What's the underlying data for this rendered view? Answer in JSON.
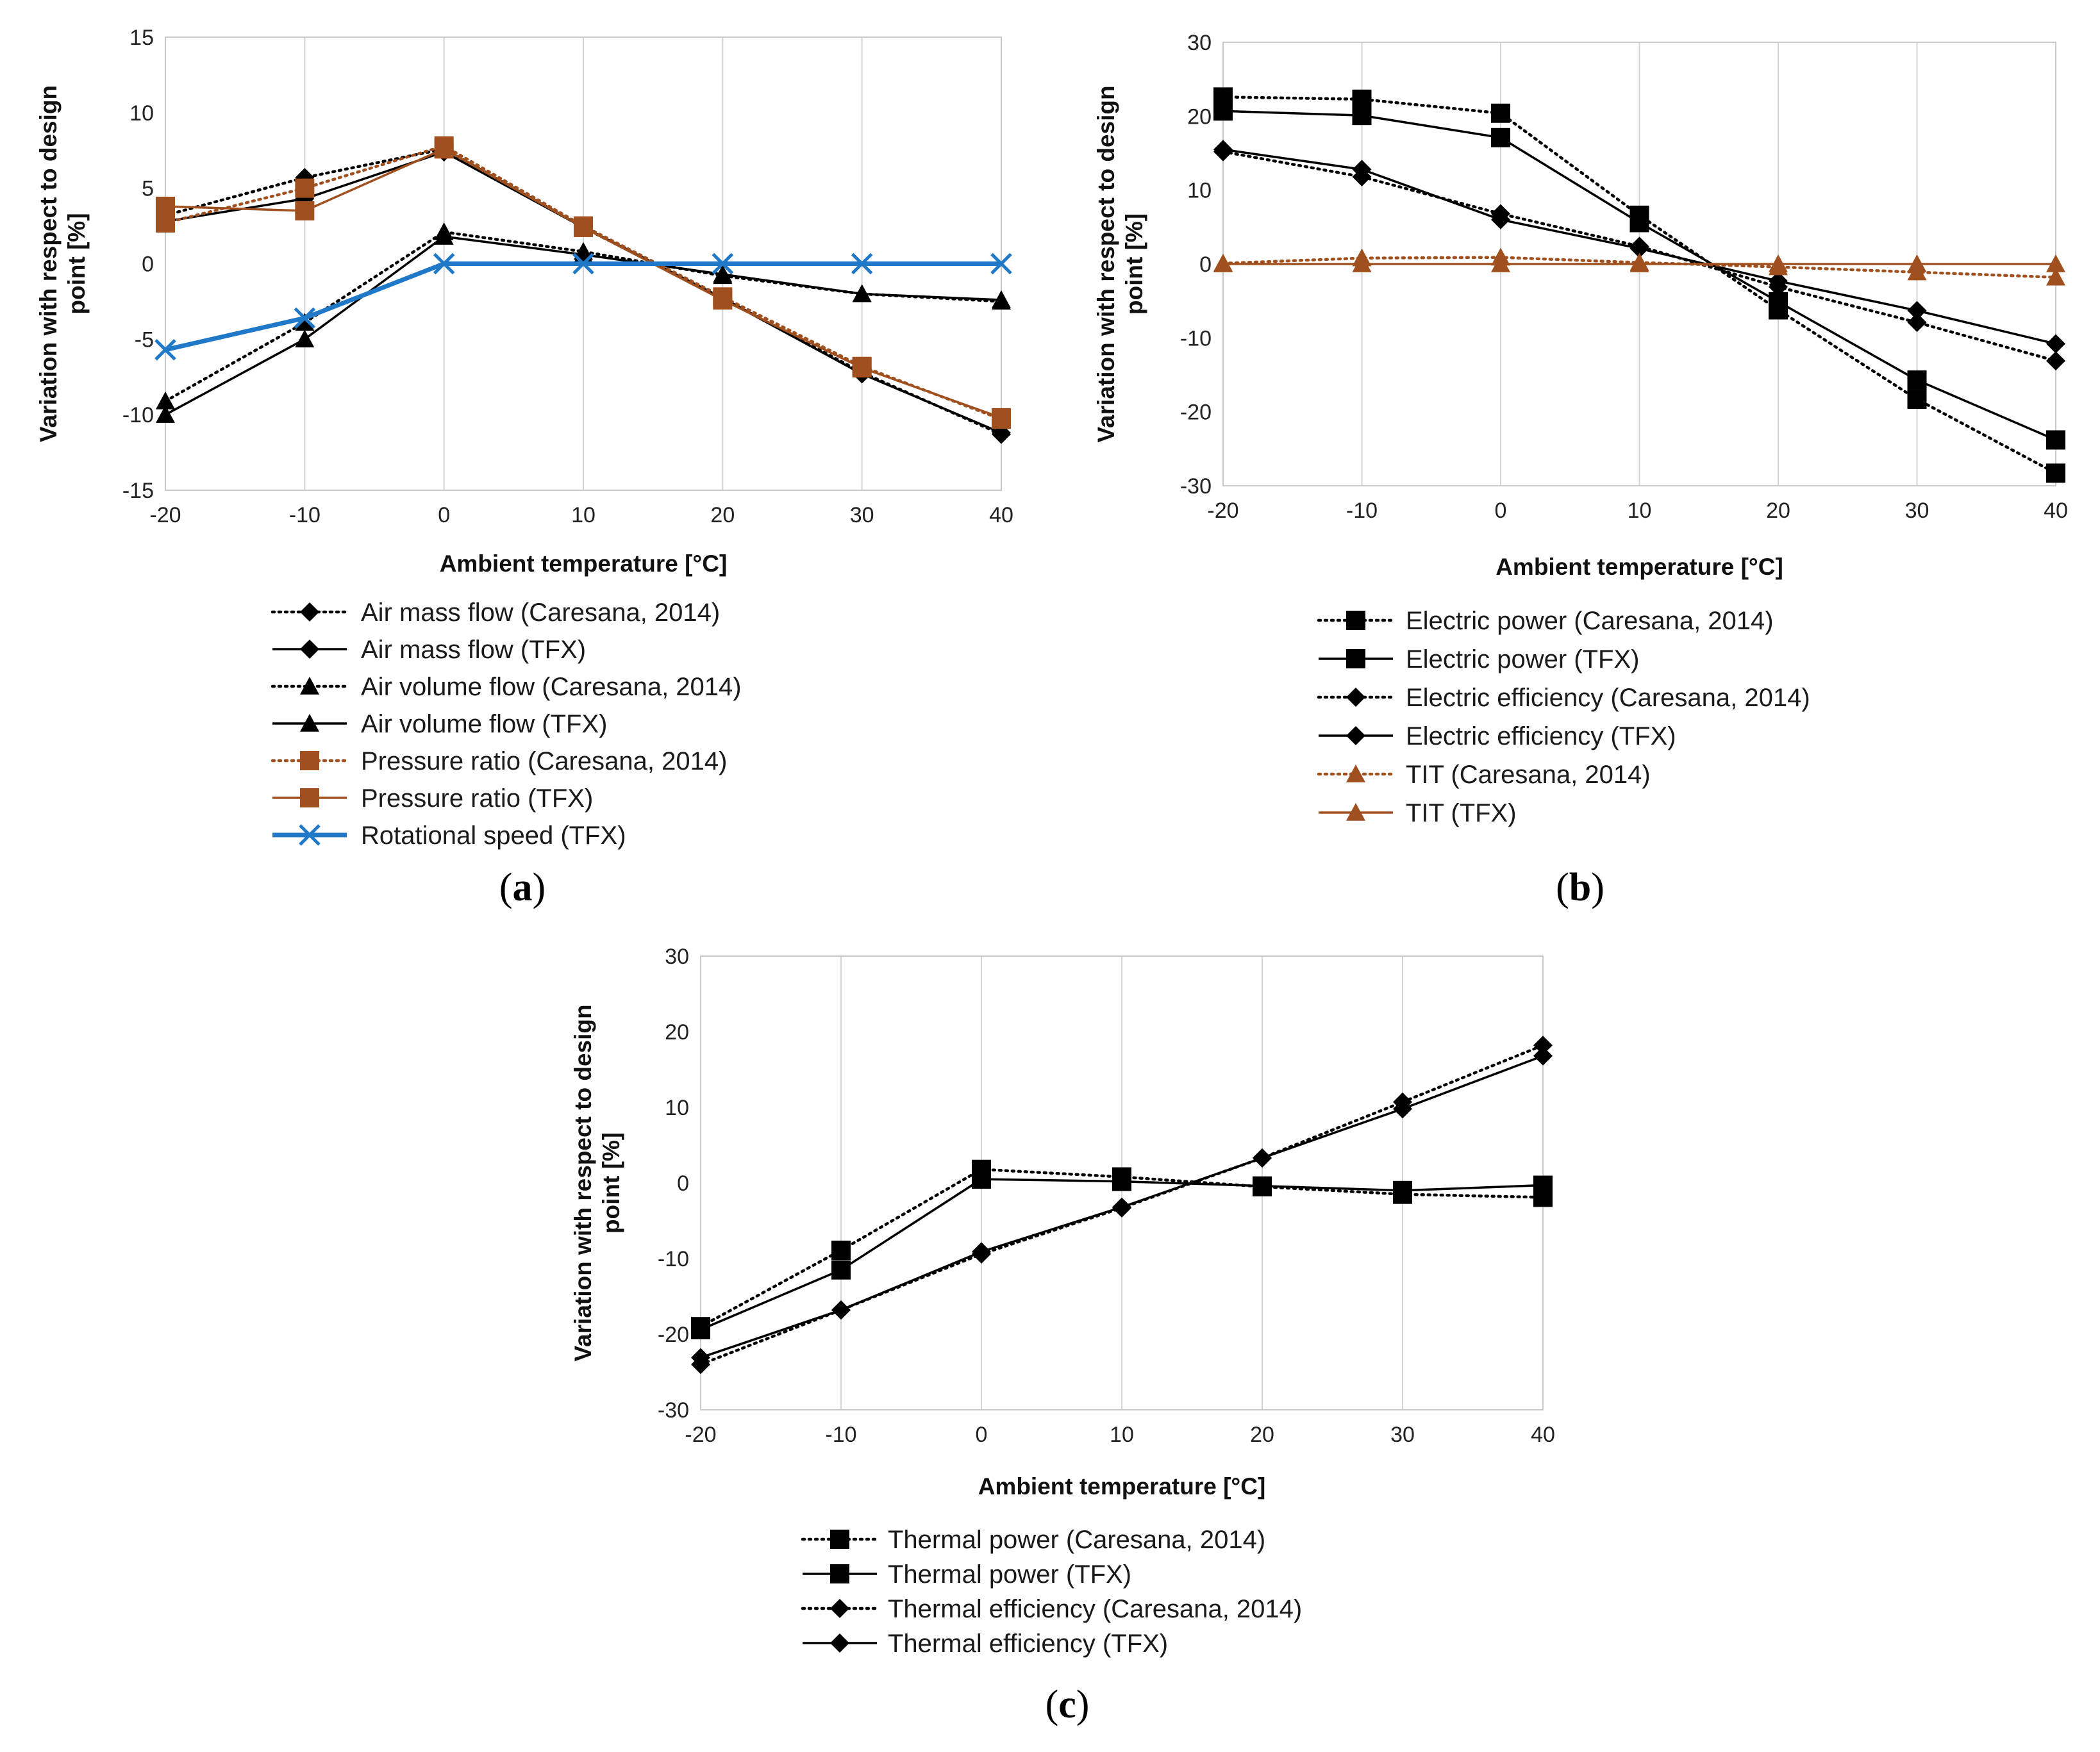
{
  "chart_data": [
    {
      "type": "line",
      "panel_label": "a",
      "xlabel": "Ambient temperature  [°C]",
      "ylabel_lines": [
        "Variation with respect to design",
        "point [%]"
      ],
      "x": [
        -20,
        -10,
        0,
        10,
        20,
        30,
        40
      ],
      "xlim": [
        -20,
        40
      ],
      "ylim": [
        -15,
        15
      ],
      "yticks": [
        -15,
        -10,
        -5,
        0,
        5,
        10,
        15
      ],
      "grid": true,
      "legend_position": "bottom",
      "series": [
        {
          "name": "Air mass flow (Caresana, 2014)",
          "color": "#000000",
          "style": "dotted",
          "marker": "diamond",
          "values": [
            3.2,
            5.7,
            7.6,
            2.4,
            -2.3,
            -7.2,
            -11.3
          ]
        },
        {
          "name": "Air mass flow (TFX)",
          "color": "#000000",
          "style": "solid",
          "marker": "diamond",
          "values": [
            2.8,
            4.3,
            7.4,
            2.4,
            -2.3,
            -7.3,
            -11.2
          ]
        },
        {
          "name": "Air volume flow (Caresana, 2014)",
          "color": "#000000",
          "style": "dotted",
          "marker": "triangle",
          "values": [
            -9.1,
            -3.9,
            2.1,
            0.8,
            -0.8,
            -2.0,
            -2.5
          ]
        },
        {
          "name": "Air volume flow (TFX)",
          "color": "#000000",
          "style": "solid",
          "marker": "triangle",
          "values": [
            -10.0,
            -5.0,
            1.8,
            0.6,
            -0.7,
            -2.0,
            -2.4
          ]
        },
        {
          "name": "Pressure ratio (Caresana, 2014)",
          "color": "#A0501E",
          "style": "dotted",
          "marker": "square",
          "values": [
            2.7,
            5.0,
            7.8,
            2.5,
            -2.2,
            -6.8,
            -10.3
          ]
        },
        {
          "name": "Pressure ratio (TFX)",
          "color": "#A0501E",
          "style": "solid",
          "marker": "square",
          "values": [
            3.8,
            3.5,
            7.6,
            2.4,
            -2.4,
            -6.9,
            -10.2
          ]
        },
        {
          "name": "Rotational speed (TFX)",
          "color": "#1F78C8",
          "style": "solid",
          "marker": "x",
          "values": [
            -5.7,
            -3.6,
            0.0,
            0.0,
            0.0,
            0.0,
            0.0
          ]
        }
      ]
    },
    {
      "type": "line",
      "panel_label": "b",
      "xlabel": "Ambient temperature [°C]",
      "ylabel_lines": [
        "Variation with respect to design",
        "point [%]"
      ],
      "x": [
        -20,
        -10,
        0,
        10,
        20,
        30,
        40
      ],
      "xlim": [
        -20,
        40
      ],
      "ylim": [
        -30,
        30
      ],
      "yticks": [
        -30,
        -20,
        -10,
        0,
        10,
        20,
        30
      ],
      "grid": true,
      "legend_position": "bottom",
      "series": [
        {
          "name": "Electric power (Caresana, 2014)",
          "color": "#000000",
          "style": "dotted",
          "marker": "square",
          "values": [
            22.6,
            22.3,
            20.4,
            6.6,
            -6.2,
            -18.3,
            -28.3
          ]
        },
        {
          "name": "Electric power (TFX)",
          "color": "#000000",
          "style": "solid",
          "marker": "square",
          "values": [
            20.7,
            20.1,
            17.1,
            5.6,
            -5.1,
            -15.7,
            -23.8
          ]
        },
        {
          "name": "Electric efficiency (Caresana, 2014)",
          "color": "#000000",
          "style": "dotted",
          "marker": "diamond",
          "values": [
            15.2,
            11.8,
            6.8,
            2.4,
            -3.1,
            -7.9,
            -13.1
          ]
        },
        {
          "name": "Electric efficiency (TFX)",
          "color": "#000000",
          "style": "solid",
          "marker": "diamond",
          "values": [
            15.5,
            12.8,
            6.0,
            2.1,
            -2.3,
            -6.3,
            -10.8
          ]
        },
        {
          "name": "TIT (Caresana, 2014)",
          "color": "#A0501E",
          "style": "dotted",
          "marker": "triangle",
          "values": [
            0.1,
            0.8,
            0.9,
            0.2,
            -0.4,
            -1.1,
            -1.8
          ]
        },
        {
          "name": "TIT (TFX)",
          "color": "#A0501E",
          "style": "solid",
          "marker": "triangle",
          "values": [
            0.0,
            0.0,
            0.0,
            0.0,
            0.0,
            0.0,
            0.0
          ]
        }
      ]
    },
    {
      "type": "line",
      "panel_label": "c",
      "xlabel": "Ambient temperature [°C]",
      "ylabel_lines": [
        "Variation with respect to design",
        "point [%]"
      ],
      "x": [
        -20,
        -10,
        0,
        10,
        20,
        30,
        40
      ],
      "xlim": [
        -20,
        40
      ],
      "ylim": [
        -30,
        30
      ],
      "yticks": [
        -30,
        -20,
        -10,
        0,
        10,
        20,
        30
      ],
      "grid": true,
      "legend_position": "bottom",
      "series": [
        {
          "name": "Thermal power (Caresana, 2014)",
          "color": "#000000",
          "style": "dotted",
          "marker": "square",
          "values": [
            -19.0,
            -8.9,
            1.8,
            0.8,
            -0.5,
            -1.5,
            -1.9
          ]
        },
        {
          "name": "Thermal power (TFX)",
          "color": "#000000",
          "style": "solid",
          "marker": "square",
          "values": [
            -19.4,
            -11.5,
            0.5,
            0.2,
            -0.4,
            -1.0,
            -0.3
          ]
        },
        {
          "name": "Thermal efficiency (Caresana, 2014)",
          "color": "#000000",
          "style": "dotted",
          "marker": "diamond",
          "values": [
            -24.0,
            -16.8,
            -9.4,
            -3.3,
            3.3,
            10.7,
            18.2
          ]
        },
        {
          "name": "Thermal efficiency (TFX)",
          "color": "#000000",
          "style": "solid",
          "marker": "diamond",
          "values": [
            -23.1,
            -16.8,
            -9.1,
            -3.2,
            3.3,
            9.8,
            16.8
          ]
        }
      ]
    }
  ]
}
